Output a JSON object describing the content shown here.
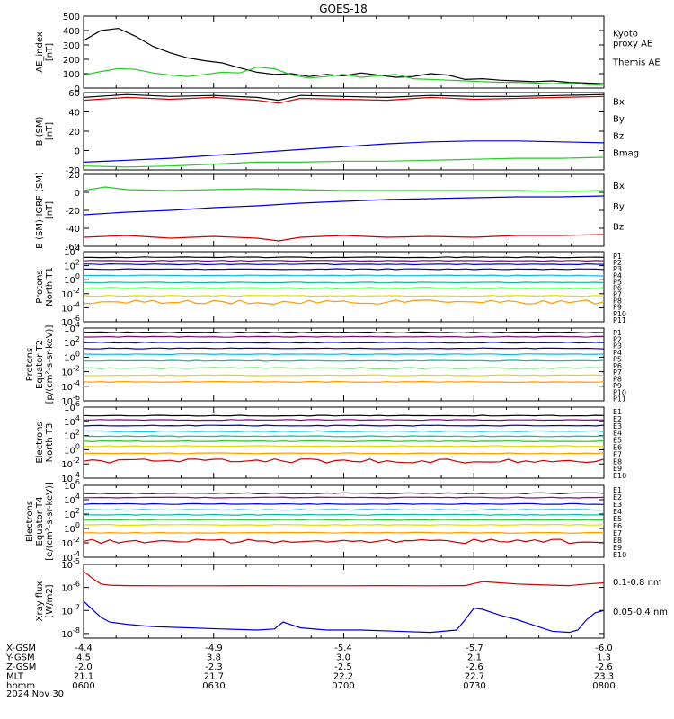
{
  "title": "GOES-18",
  "date_label": "2024 Nov 30",
  "colors": {
    "black": "#000000",
    "green": "#22cc22",
    "lgreen": "#33dd33",
    "blue": "#0000cc",
    "red": "#cc0000",
    "cyan": "#00bbee",
    "teal": "#00c0a0",
    "yellow": "#dddd00",
    "orange": "#ff9900",
    "purple": "#880088",
    "dred": "#aa0000"
  },
  "footer": {
    "row_labels": [
      "X-GSM",
      "Y-GSM",
      "Z-GSM",
      "MLT",
      "hhmm"
    ],
    "columns": [
      [
        "-4.4",
        "4.5",
        "-2.0",
        "21.1",
        "0600"
      ],
      [
        "-4.9",
        "3.8",
        "-2.3",
        "21.7",
        "0630"
      ],
      [
        "-5.4",
        "3.0",
        "-2.5",
        "22.2",
        "0700"
      ],
      [
        "-5.7",
        "2.1",
        "-2.6",
        "22.7",
        "0730"
      ],
      [
        "-6.0",
        "1.3",
        "-2.6",
        "23.3",
        "0800"
      ]
    ]
  },
  "chart_data": [
    {
      "type": "line",
      "id": "ae",
      "ylabel": [
        "AE_index",
        "[nT]"
      ],
      "ylim": [
        0,
        500
      ],
      "yticks": [
        "500",
        "400",
        "300",
        "200",
        "100",
        "0"
      ],
      "xlim": [
        0,
        120
      ],
      "legend": [
        {
          "text": [
            "Kyoto",
            "proxy AE"
          ],
          "color": "green"
        },
        {
          "text": [
            "Themis AE"
          ],
          "color": "black"
        }
      ],
      "series": [
        {
          "color": "black",
          "x": [
            0,
            4,
            8,
            12,
            16,
            20,
            24,
            28,
            32,
            36,
            40,
            44,
            48,
            52,
            56,
            60,
            64,
            68,
            72,
            76,
            80,
            84,
            88,
            92,
            96,
            100,
            104,
            108,
            112,
            116,
            120
          ],
          "y": [
            330,
            400,
            415,
            360,
            290,
            245,
            210,
            190,
            175,
            140,
            110,
            95,
            100,
            80,
            95,
            85,
            105,
            90,
            75,
            80,
            100,
            90,
            60,
            65,
            55,
            50,
            45,
            50,
            40,
            35,
            30
          ]
        },
        {
          "color": "green",
          "x": [
            0,
            4,
            8,
            12,
            16,
            20,
            24,
            28,
            32,
            36,
            40,
            44,
            48,
            52,
            56,
            60,
            64,
            68,
            72,
            76,
            80,
            84,
            88,
            92,
            96,
            100,
            104,
            108,
            112,
            116,
            120
          ],
          "y": [
            90,
            115,
            135,
            130,
            105,
            90,
            80,
            95,
            110,
            105,
            145,
            135,
            90,
            70,
            80,
            95,
            75,
            85,
            95,
            65,
            60,
            55,
            50,
            45,
            40,
            40,
            35,
            30,
            35,
            25,
            20
          ]
        }
      ]
    },
    {
      "type": "line",
      "id": "bsm",
      "ylabel": [
        "B (SM)",
        "[nT]"
      ],
      "ylim": [
        -20,
        60
      ],
      "yticks": [
        "60",
        "40",
        "20",
        "0",
        "-20"
      ],
      "xlim": [
        0,
        120
      ],
      "legend": [
        {
          "text": [
            "Bx"
          ],
          "color": "blue"
        },
        {
          "text": [
            "By"
          ],
          "color": "green"
        },
        {
          "text": [
            "Bz"
          ],
          "color": "red"
        },
        {
          "text": [
            "Bmag"
          ],
          "color": "black"
        }
      ],
      "series": [
        {
          "color": "black",
          "x": [
            0,
            10,
            20,
            30,
            40,
            45,
            50,
            60,
            70,
            80,
            90,
            100,
            110,
            120
          ],
          "y": [
            55,
            58,
            56,
            57,
            55,
            52,
            57,
            56,
            55,
            57,
            56,
            56,
            57,
            58
          ]
        },
        {
          "color": "red",
          "x": [
            0,
            10,
            20,
            30,
            40,
            45,
            50,
            60,
            70,
            80,
            90,
            100,
            110,
            120
          ],
          "y": [
            52,
            55,
            53,
            55,
            52,
            49,
            54,
            53,
            52,
            55,
            53,
            54,
            55,
            56
          ]
        },
        {
          "color": "blue",
          "x": [
            0,
            10,
            20,
            30,
            40,
            50,
            60,
            70,
            80,
            90,
            100,
            110,
            120
          ],
          "y": [
            -12,
            -10,
            -8,
            -5,
            -2,
            1,
            4,
            7,
            9,
            10,
            10,
            9,
            8
          ]
        },
        {
          "color": "green",
          "x": [
            0,
            10,
            20,
            30,
            40,
            50,
            60,
            70,
            80,
            90,
            100,
            110,
            120
          ],
          "y": [
            -16,
            -17,
            -16,
            -14,
            -12,
            -12,
            -11,
            -11,
            -10,
            -9,
            -8,
            -8,
            -7
          ]
        }
      ]
    },
    {
      "type": "line",
      "id": "bdiff",
      "ylabel": [
        "B (SM)-IGRF (SM)",
        "[nT]"
      ],
      "ylim": [
        -60,
        20
      ],
      "yticks": [
        "20",
        "0",
        "-20",
        "-40",
        "-60"
      ],
      "xlim": [
        0,
        120
      ],
      "legend": [
        {
          "text": [
            "Bx"
          ],
          "color": "blue"
        },
        {
          "text": [
            "By"
          ],
          "color": "green"
        },
        {
          "text": [
            "Bz"
          ],
          "color": "red"
        }
      ],
      "series": [
        {
          "color": "green",
          "x": [
            0,
            5,
            10,
            20,
            30,
            40,
            50,
            60,
            70,
            80,
            90,
            100,
            110,
            120
          ],
          "y": [
            2,
            6,
            3,
            2,
            3,
            4,
            3,
            2,
            2,
            2,
            2,
            2,
            1,
            2
          ]
        },
        {
          "color": "blue",
          "x": [
            0,
            10,
            20,
            30,
            40,
            50,
            60,
            70,
            80,
            90,
            100,
            110,
            120
          ],
          "y": [
            -25,
            -22,
            -20,
            -17,
            -15,
            -12,
            -10,
            -8,
            -7,
            -6,
            -5,
            -5,
            -4
          ]
        },
        {
          "color": "red",
          "x": [
            0,
            10,
            20,
            30,
            40,
            45,
            50,
            60,
            70,
            80,
            90,
            100,
            110,
            120
          ],
          "y": [
            -50,
            -48,
            -51,
            -49,
            -51,
            -54,
            -50,
            -48,
            -50,
            -49,
            -50,
            -48,
            -48,
            -47
          ]
        }
      ]
    },
    {
      "type": "line",
      "id": "prot_t1",
      "scale": "log",
      "ylabel": [
        "Protons",
        "North T1"
      ],
      "ylim": [
        -6,
        4
      ],
      "yticks_exp": [
        4,
        2,
        0,
        -2,
        -4,
        -6
      ],
      "xlim": [
        0,
        120
      ],
      "legend": [
        {
          "text": [
            "P1"
          ],
          "color": "black"
        },
        {
          "text": [
            "P2"
          ],
          "color": "purple"
        },
        {
          "text": [
            "P3"
          ],
          "color": "blue"
        },
        {
          "text": [
            "P4"
          ],
          "color": "blue"
        },
        {
          "text": [
            "P5"
          ],
          "color": "cyan"
        },
        {
          "text": [
            "P6"
          ],
          "color": "teal"
        },
        {
          "text": [
            "P7"
          ],
          "color": "yellow"
        },
        {
          "text": [
            "P8"
          ],
          "color": "yellow"
        },
        {
          "text": [
            "P9"
          ],
          "color": "orange"
        },
        {
          "text": [
            "P10"
          ],
          "color": "red"
        },
        {
          "text": [
            "P11"
          ],
          "color": "dred"
        }
      ],
      "series": [
        {
          "color": "black",
          "flat": 3.2
        },
        {
          "color": "purple",
          "flat": 2.7
        },
        {
          "color": "blue",
          "flat": 2.2
        },
        {
          "color": "blue",
          "flat": 1.5
        },
        {
          "color": "cyan",
          "flat": 0.6
        },
        {
          "color": "teal",
          "flat": -0.4
        },
        {
          "color": "green",
          "flat": -1.2
        },
        {
          "color": "yellow",
          "flat": -2.3
        },
        {
          "color": "orange",
          "flat": -3.2,
          "noisy": true
        }
      ]
    },
    {
      "type": "line",
      "id": "prot_t2",
      "scale": "log",
      "ylabel": [
        "Protons",
        "Equator T2",
        "[p/(cm²-s-sr-keV)]"
      ],
      "ylim": [
        -6,
        4
      ],
      "yticks_exp": [
        4,
        2,
        0,
        -2,
        -4,
        -6
      ],
      "xlim": [
        0,
        120
      ],
      "legend": [
        {
          "text": [
            "P1"
          ],
          "color": "black"
        },
        {
          "text": [
            "P2"
          ],
          "color": "purple"
        },
        {
          "text": [
            "P3"
          ],
          "color": "blue"
        },
        {
          "text": [
            "P4"
          ],
          "color": "blue"
        },
        {
          "text": [
            "P5"
          ],
          "color": "cyan"
        },
        {
          "text": [
            "P6"
          ],
          "color": "teal"
        },
        {
          "text": [
            "P7"
          ],
          "color": "yellow"
        },
        {
          "text": [
            "P8"
          ],
          "color": "yellow"
        },
        {
          "text": [
            "P9"
          ],
          "color": "orange"
        },
        {
          "text": [
            "P10"
          ],
          "color": "red"
        },
        {
          "text": [
            "P11"
          ],
          "color": "dred"
        }
      ],
      "series": [
        {
          "color": "black",
          "flat": 3.4
        },
        {
          "color": "purple",
          "flat": 2.8
        },
        {
          "color": "blue",
          "flat": 2.0
        },
        {
          "color": "blue",
          "flat": 1.2
        },
        {
          "color": "cyan",
          "flat": 0.4
        },
        {
          "color": "teal",
          "flat": -0.5
        },
        {
          "color": "green",
          "flat": -1.5
        },
        {
          "color": "yellow",
          "flat": -2.5
        },
        {
          "color": "orange",
          "flat": -3.4
        }
      ]
    },
    {
      "type": "line",
      "id": "elec_t3",
      "scale": "log",
      "ylabel": [
        "Electrons",
        "North T3"
      ],
      "ylim": [
        -4,
        6
      ],
      "yticks_exp": [
        6,
        4,
        2,
        0,
        -2,
        -4
      ],
      "xlim": [
        0,
        120
      ],
      "legend": [
        {
          "text": [
            "E1"
          ],
          "color": "black"
        },
        {
          "text": [
            "E2"
          ],
          "color": "purple"
        },
        {
          "text": [
            "E3"
          ],
          "color": "blue"
        },
        {
          "text": [
            "E4"
          ],
          "color": "cyan"
        },
        {
          "text": [
            "E5"
          ],
          "color": "cyan"
        },
        {
          "text": [
            "E6"
          ],
          "color": "yellow"
        },
        {
          "text": [
            "E7"
          ],
          "color": "yellow"
        },
        {
          "text": [
            "E8"
          ],
          "color": "orange"
        },
        {
          "text": [
            "E9"
          ],
          "color": "red"
        },
        {
          "text": [
            "E10"
          ],
          "color": "dred"
        }
      ],
      "series": [
        {
          "color": "black",
          "flat": 4.8
        },
        {
          "color": "purple",
          "flat": 4.2
        },
        {
          "color": "blue",
          "flat": 3.4
        },
        {
          "color": "cyan",
          "flat": 2.6
        },
        {
          "color": "teal",
          "flat": 1.9
        },
        {
          "color": "green",
          "flat": 1.2
        },
        {
          "color": "yellow",
          "flat": 0.5
        },
        {
          "color": "orange",
          "flat": -0.5
        },
        {
          "color": "red",
          "flat": -1.6,
          "noisy": true
        }
      ]
    },
    {
      "type": "line",
      "id": "elec_t4",
      "scale": "log",
      "ylabel": [
        "Electrons",
        "Equator T4",
        "[e/(cm²-s-sr-keV)]"
      ],
      "ylim": [
        -4,
        6
      ],
      "yticks_exp": [
        6,
        4,
        2,
        0,
        -2,
        -4
      ],
      "xlim": [
        0,
        120
      ],
      "legend": [
        {
          "text": [
            "E1"
          ],
          "color": "black"
        },
        {
          "text": [
            "E2"
          ],
          "color": "purple"
        },
        {
          "text": [
            "E3"
          ],
          "color": "blue"
        },
        {
          "text": [
            "E4"
          ],
          "color": "cyan"
        },
        {
          "text": [
            "E5"
          ],
          "color": "cyan"
        },
        {
          "text": [
            "E6"
          ],
          "color": "yellow"
        },
        {
          "text": [
            "E7"
          ],
          "color": "yellow"
        },
        {
          "text": [
            "E8"
          ],
          "color": "orange"
        },
        {
          "text": [
            "E9"
          ],
          "color": "red"
        },
        {
          "text": [
            "E10"
          ],
          "color": "dred"
        }
      ],
      "series": [
        {
          "color": "black",
          "flat": 4.9
        },
        {
          "color": "purple",
          "flat": 4.3
        },
        {
          "color": "blue",
          "flat": 3.4
        },
        {
          "color": "cyan",
          "flat": 2.6
        },
        {
          "color": "teal",
          "flat": 1.9
        },
        {
          "color": "green",
          "flat": 1.2
        },
        {
          "color": "yellow",
          "flat": 0.5
        },
        {
          "color": "orange",
          "flat": -0.6
        },
        {
          "color": "red",
          "flat": -1.8,
          "noisy": true
        }
      ]
    },
    {
      "type": "line",
      "id": "xray",
      "scale": "log",
      "ylabel": [
        "Xray flux",
        "[W/m2]"
      ],
      "ylim": [
        -8.2,
        -5
      ],
      "yticks_exp": [
        -5,
        -6,
        -7,
        -8
      ],
      "xlim": [
        0,
        120
      ],
      "legend": [
        {
          "text": [
            "0.1-0.8 nm"
          ],
          "color": "red"
        },
        {
          "text": [
            "0.05-0.4 nm"
          ],
          "color": "blue"
        }
      ],
      "series": [
        {
          "color": "red",
          "x": [
            0,
            2,
            4,
            6,
            10,
            20,
            30,
            40,
            50,
            60,
            70,
            80,
            88,
            92,
            96,
            100,
            104,
            108,
            112,
            116,
            120
          ],
          "y": [
            -5.3,
            -5.6,
            -5.85,
            -5.9,
            -5.92,
            -5.93,
            -5.93,
            -5.92,
            -5.93,
            -5.93,
            -5.92,
            -5.93,
            -5.92,
            -5.75,
            -5.8,
            -5.85,
            -5.88,
            -5.9,
            -5.92,
            -5.85,
            -5.8
          ]
        },
        {
          "color": "blue",
          "x": [
            0,
            2,
            4,
            6,
            10,
            16,
            24,
            32,
            40,
            44,
            46,
            50,
            56,
            64,
            72,
            80,
            86,
            88,
            90,
            92,
            96,
            100,
            104,
            108,
            112,
            114,
            116,
            118,
            120
          ],
          "y": [
            -6.6,
            -6.95,
            -7.3,
            -7.5,
            -7.6,
            -7.7,
            -7.75,
            -7.8,
            -7.85,
            -7.8,
            -7.5,
            -7.75,
            -7.85,
            -7.85,
            -7.9,
            -7.95,
            -7.85,
            -7.4,
            -6.9,
            -6.95,
            -7.2,
            -7.4,
            -7.65,
            -7.9,
            -7.95,
            -7.85,
            -7.4,
            -7.1,
            -7.0
          ]
        }
      ]
    }
  ]
}
